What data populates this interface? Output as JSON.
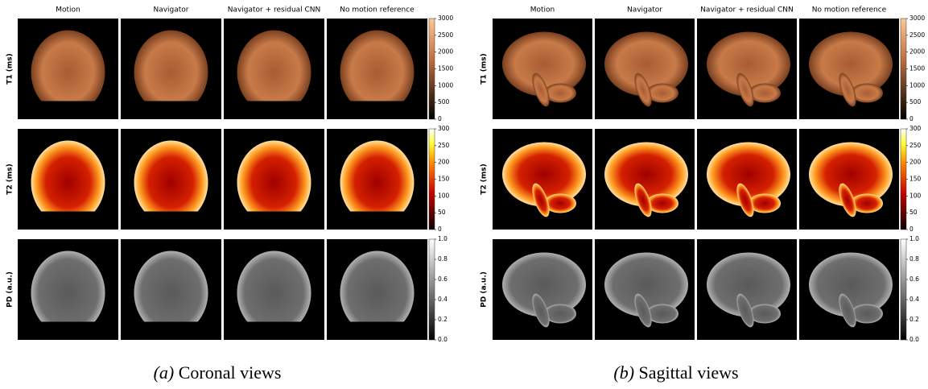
{
  "panels": [
    {
      "caption_label": "(a)",
      "caption": "Coronal views",
      "columns": [
        "Motion",
        "Navigator",
        "Navigator + residual CNN",
        "No motion reference"
      ],
      "rows": [
        {
          "label": "T1 (ms)",
          "ticks": [
            0,
            500,
            1000,
            1500,
            2000,
            2500,
            3000
          ]
        },
        {
          "label": "T2 (ms)",
          "ticks": [
            0,
            50,
            100,
            150,
            200,
            250,
            300
          ]
        },
        {
          "label": "PD (a.u.)",
          "ticks": [
            {
              "value": 0,
              "label": "0.0"
            },
            {
              "value": 0.2,
              "label": "0.2"
            },
            {
              "value": 0.4,
              "label": "0.4"
            },
            {
              "value": 0.6,
              "label": "0.6"
            },
            {
              "value": 0.8,
              "label": "0.8"
            },
            {
              "value": 1,
              "label": "1.0"
            }
          ]
        }
      ]
    },
    {
      "caption_label": "(b)",
      "caption": "Sagittal views",
      "columns": [
        "Motion",
        "Navigator",
        "Navigator + residual CNN",
        "No motion reference"
      ],
      "rows": [
        {
          "label": "T1 (ms)",
          "ticks": [
            0,
            500,
            1000,
            1500,
            2000,
            2500,
            3000
          ]
        },
        {
          "label": "T2 (ms)",
          "ticks": [
            0,
            50,
            100,
            150,
            200,
            250,
            300
          ]
        },
        {
          "label": "PD (a.u.)",
          "ticks": [
            {
              "value": 0,
              "label": "0.0"
            },
            {
              "value": 0.2,
              "label": "0.2"
            },
            {
              "value": 0.4,
              "label": "0.4"
            },
            {
              "value": 0.6,
              "label": "0.6"
            },
            {
              "value": 0.8,
              "label": "0.8"
            },
            {
              "value": 1,
              "label": "1.0"
            }
          ]
        }
      ]
    }
  ]
}
